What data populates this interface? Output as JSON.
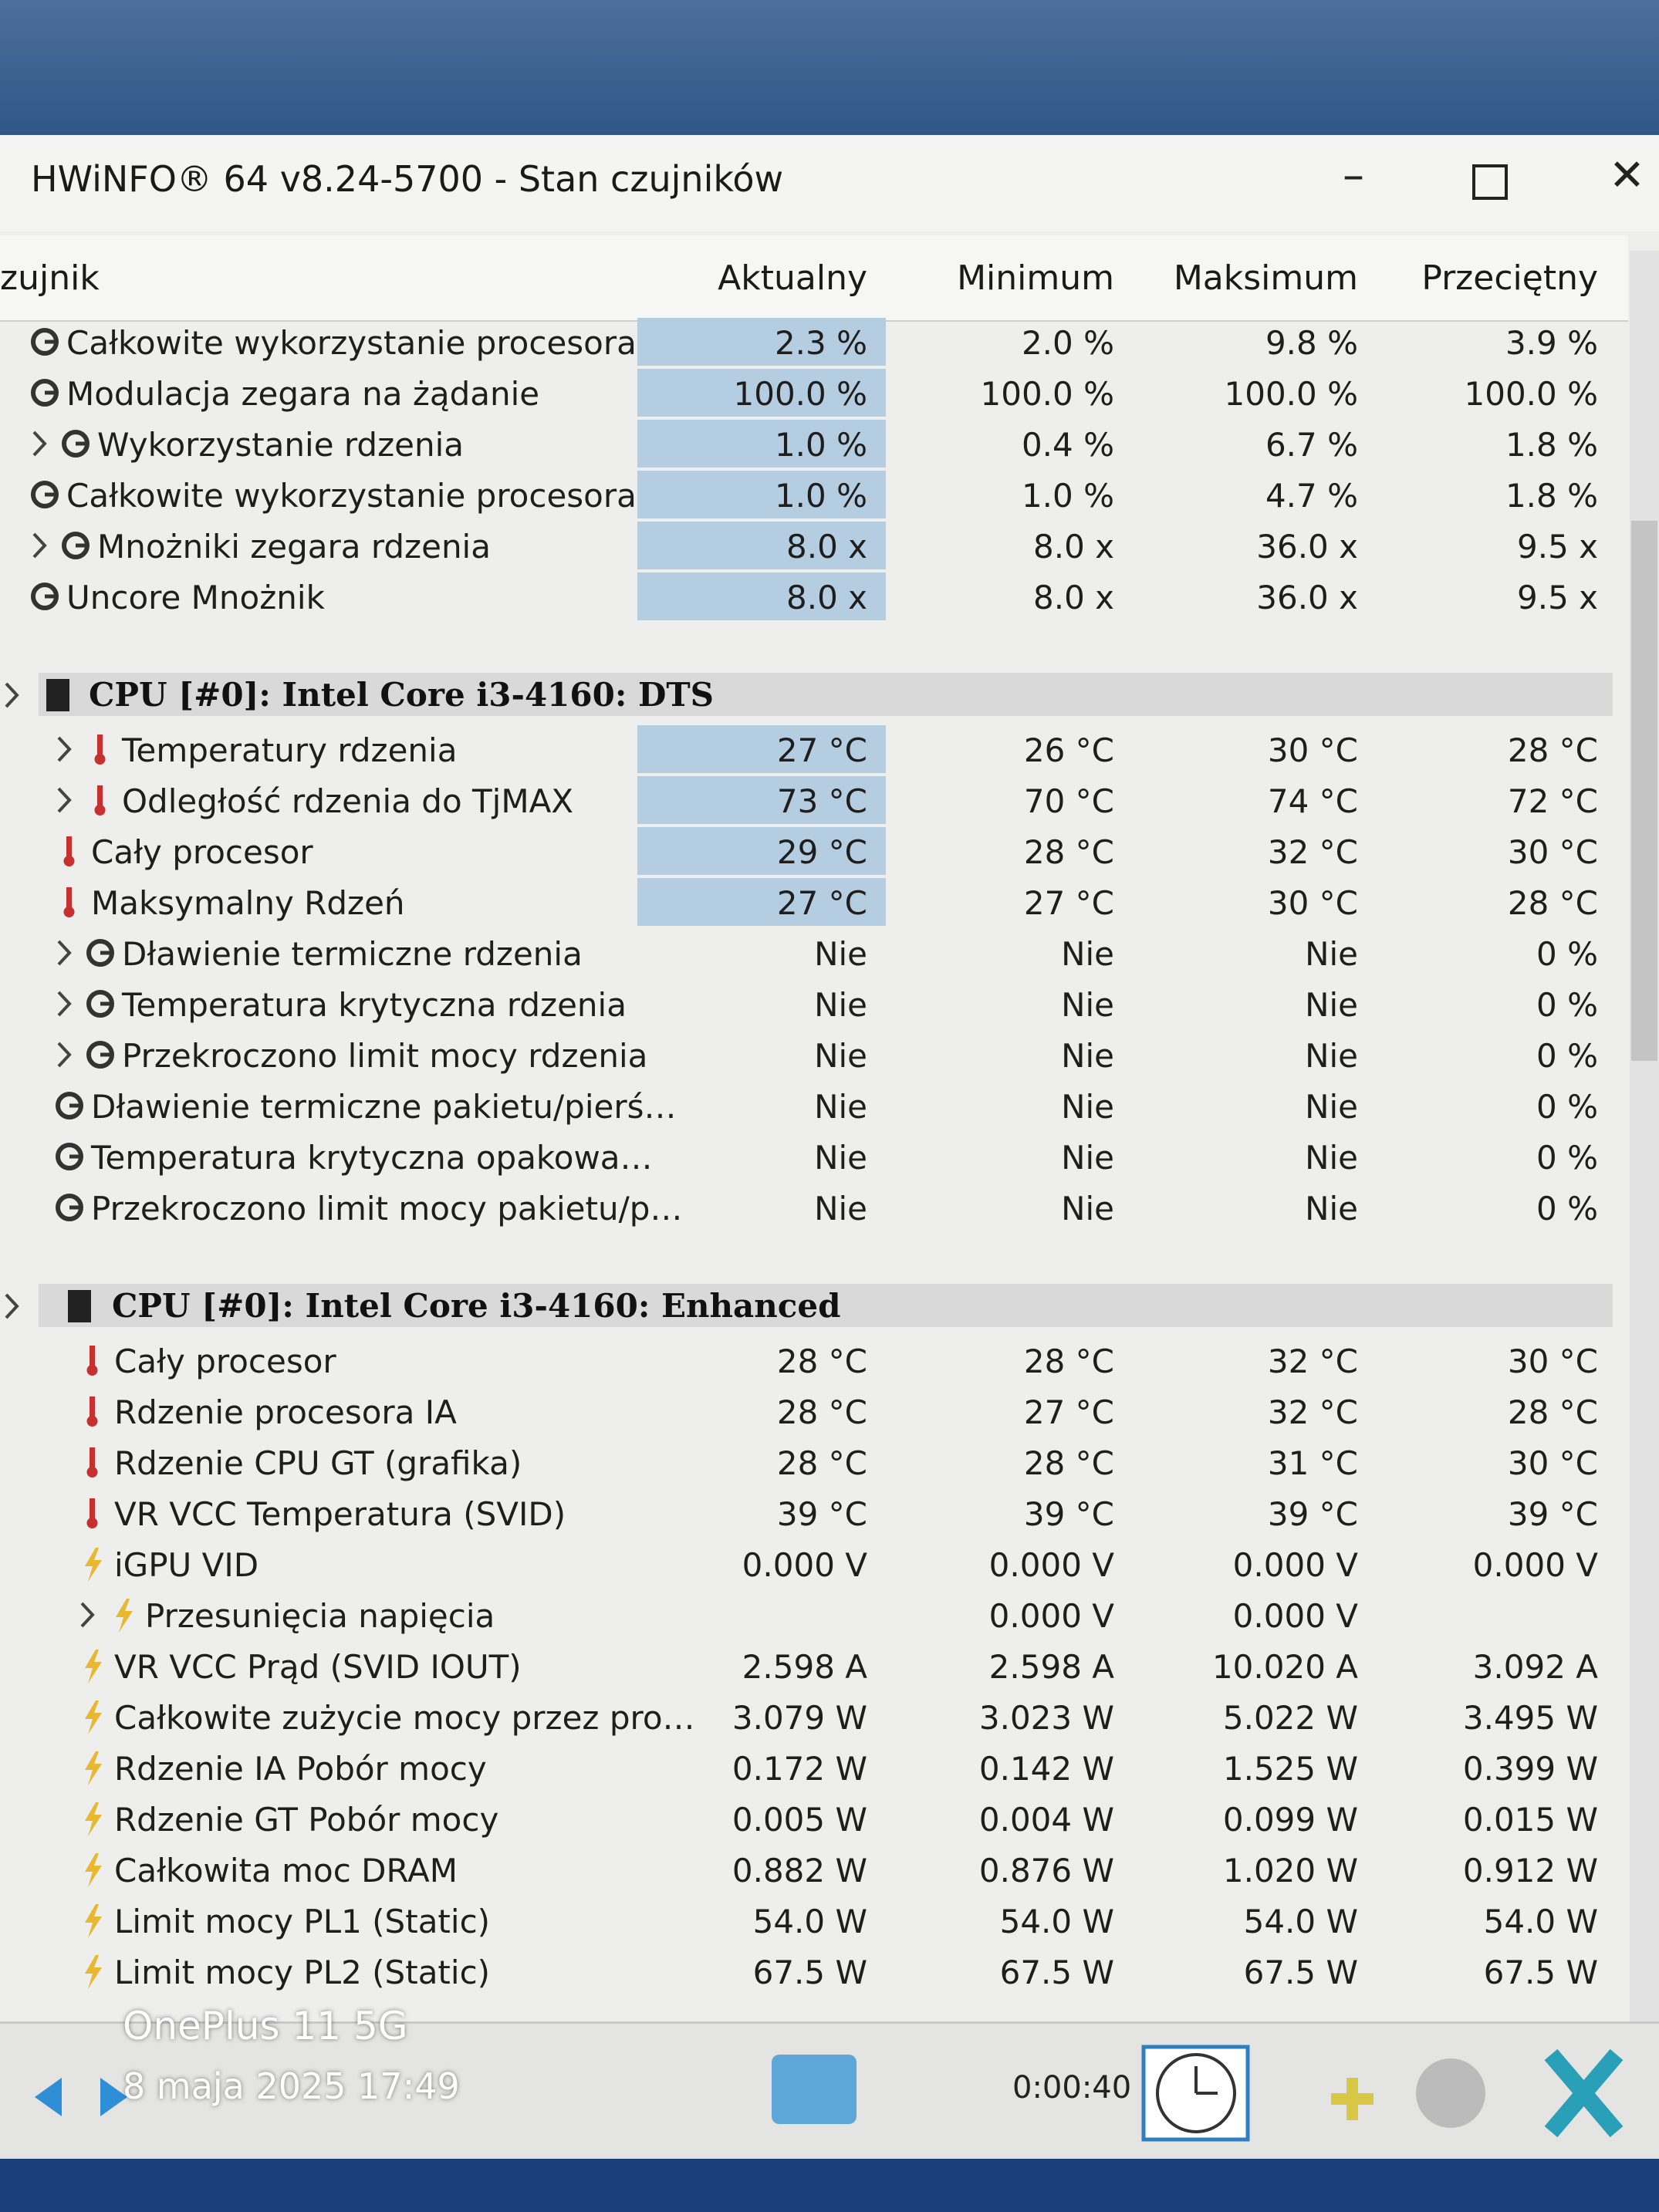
{
  "window": {
    "title": "HWiNFO® 64 v8.24-5700 - Stan czujników"
  },
  "columns": [
    "zujnik",
    "Aktualny",
    "Minimum",
    "Maksimum",
    "Przeciętny"
  ],
  "sections": [
    {
      "rows": [
        {
          "label": "Całkowite wykorzystanie procesora",
          "values": [
            "2.3 %",
            "2.0 %",
            "9.8 %",
            "3.9 %"
          ]
        },
        {
          "label": "Modulacja zegara na żądanie",
          "values": [
            "100.0 %",
            "100.0 %",
            "100.0 %",
            "100.0 %"
          ]
        },
        {
          "label": "Wykorzystanie rdzenia",
          "values": [
            "1.0 %",
            "0.4 %",
            "6.7 %",
            "1.8 %"
          ]
        },
        {
          "label": "Całkowite wykorzystanie procesora",
          "values": [
            "1.0 %",
            "1.0 %",
            "4.7 %",
            "1.8 %"
          ]
        },
        {
          "label": "Mnożniki zegara rdzenia",
          "values": [
            "8.0 x",
            "8.0 x",
            "36.0 x",
            "9.5 x"
          ]
        },
        {
          "label": "Uncore Mnożnik",
          "values": [
            "8.0 x",
            "8.0 x",
            "36.0 x",
            "9.5 x"
          ]
        }
      ]
    },
    {
      "title": "CPU [#0]: Intel Core i3-4160: DTS",
      "rows": [
        {
          "label": "Temperatury rdzenia",
          "values": [
            "27 °C",
            "26 °C",
            "30 °C",
            "28 °C"
          ]
        },
        {
          "label": "Odległość rdzenia do TjMAX",
          "values": [
            "73 °C",
            "70 °C",
            "74 °C",
            "72 °C"
          ]
        },
        {
          "label": "Cały procesor",
          "values": [
            "29 °C",
            "28 °C",
            "32 °C",
            "30 °C"
          ]
        },
        {
          "label": "Maksymalny Rdzeń",
          "values": [
            "27 °C",
            "27 °C",
            "30 °C",
            "28 °C"
          ]
        },
        {
          "label": "Dławienie termiczne rdzenia",
          "values": [
            "Nie",
            "Nie",
            "Nie",
            "0 %"
          ]
        },
        {
          "label": "Temperatura krytyczna rdzenia",
          "values": [
            "Nie",
            "Nie",
            "Nie",
            "0 %"
          ]
        },
        {
          "label": "Przekroczono limit mocy rdzenia",
          "values": [
            "Nie",
            "Nie",
            "Nie",
            "0 %"
          ]
        },
        {
          "label": "Dławienie termiczne pakietu/pierś…",
          "values": [
            "Nie",
            "Nie",
            "Nie",
            "0 %"
          ]
        },
        {
          "label": "Temperatura krytyczna opakowa…",
          "values": [
            "Nie",
            "Nie",
            "Nie",
            "0 %"
          ]
        },
        {
          "label": "Przekroczono limit mocy pakietu/p…",
          "values": [
            "Nie",
            "Nie",
            "Nie",
            "0 %"
          ]
        }
      ]
    },
    {
      "title": "CPU [#0]: Intel Core i3-4160: Enhanced",
      "rows": [
        {
          "label": "Cały procesor",
          "values": [
            "28 °C",
            "28 °C",
            "32 °C",
            "30 °C"
          ]
        },
        {
          "label": "Rdzenie procesora IA",
          "values": [
            "28 °C",
            "27 °C",
            "32 °C",
            "28 °C"
          ]
        },
        {
          "label": "Rdzenie CPU GT (grafika)",
          "values": [
            "28 °C",
            "28 °C",
            "31 °C",
            "30 °C"
          ]
        },
        {
          "label": "VR VCC Temperatura (SVID)",
          "values": [
            "39 °C",
            "39 °C",
            "39 °C",
            "39 °C"
          ]
        },
        {
          "label": "iGPU VID",
          "values": [
            "0.000 V",
            "0.000 V",
            "0.000 V",
            "0.000 V"
          ]
        },
        {
          "label": "Przesunięcia napięcia",
          "values": [
            null,
            "0.000 V",
            "0.000 V",
            null
          ]
        },
        {
          "label": "VR VCC Prąd (SVID IOUT)",
          "values": [
            "2.598 A",
            "2.598 A",
            "10.020 A",
            "3.092 A"
          ]
        },
        {
          "label": "Całkowite zużycie mocy przez pro…",
          "values": [
            "3.079 W",
            "3.023 W",
            "5.022 W",
            "3.495 W"
          ]
        },
        {
          "label": "Rdzenie IA Pobór mocy",
          "values": [
            "0.172 W",
            "0.142 W",
            "1.525 W",
            "0.399 W"
          ]
        },
        {
          "label": "Rdzenie GT Pobór mocy",
          "values": [
            "0.005 W",
            "0.004 W",
            "0.099 W",
            "0.015 W"
          ]
        },
        {
          "label": "Całkowita moc DRAM",
          "values": [
            "0.882 W",
            "0.876 W",
            "1.020 W",
            "0.912 W"
          ]
        },
        {
          "label": "Limit mocy PL1 (Static)",
          "values": [
            "54.0 W",
            "54.0 W",
            "54.0 W",
            "54.0 W"
          ]
        },
        {
          "label": "Limit mocy PL2 (Static)",
          "values": [
            "67.5 W",
            "67.5 W",
            "67.5 W",
            "67.5 W"
          ]
        }
      ]
    }
  ],
  "footer": {
    "timer": "0:00:40"
  },
  "watermark": {
    "device": "OnePlus 11 5G",
    "date": "8 maja 2025 17:49"
  }
}
